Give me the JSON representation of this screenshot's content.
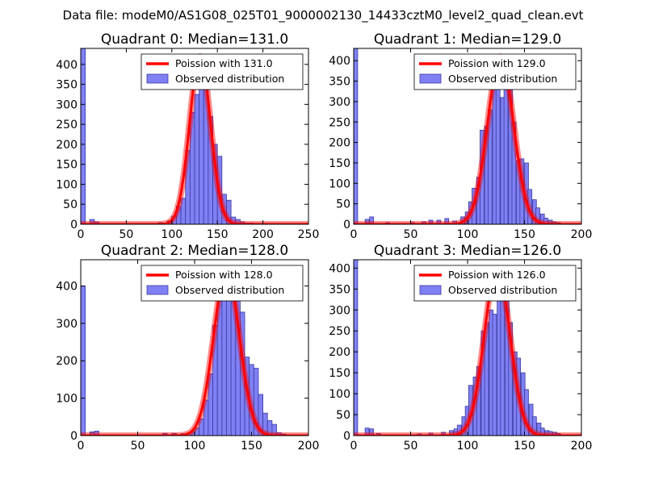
{
  "figure": {
    "suptitle": "Data file: modeM0/AS1G08_025T01_9000002130_14433cztM0_level2_quad_clean.evt",
    "colors": {
      "bar_fill": "#8080f5",
      "bar_edge": "#3a3aa0",
      "fit_line": "#ff0000",
      "axis": "#000000",
      "background": "#ffffff"
    }
  },
  "chart_data": [
    {
      "type": "bar",
      "title": "Quadrant 0: Median=131.0",
      "xlim": [
        0,
        250
      ],
      "ylim": [
        0,
        440
      ],
      "xticks": [
        0,
        50,
        100,
        150,
        200,
        250
      ],
      "yticks": [
        0,
        50,
        100,
        150,
        200,
        250,
        300,
        350,
        400
      ],
      "legend_location": "top-right",
      "series": [
        {
          "name": "Observed distribution",
          "kind": "histogram",
          "bin_width": 5,
          "bins": [
            [
              0,
              440
            ],
            [
              10,
              12
            ],
            [
              15,
              6
            ],
            [
              85,
              4
            ],
            [
              95,
              8
            ],
            [
              100,
              20
            ],
            [
              105,
              45
            ],
            [
              110,
              65
            ],
            [
              115,
              185
            ],
            [
              120,
              280
            ],
            [
              125,
              325
            ],
            [
              130,
              360
            ],
            [
              135,
              375
            ],
            [
              140,
              270
            ],
            [
              145,
              200
            ],
            [
              150,
              170
            ],
            [
              155,
              75
            ],
            [
              160,
              60
            ],
            [
              165,
              18
            ],
            [
              170,
              12
            ],
            [
              175,
              6
            ],
            [
              180,
              3
            ],
            [
              185,
              3
            ],
            [
              190,
              2
            ],
            [
              195,
              1
            ]
          ]
        },
        {
          "name": "Poission with 131.0",
          "kind": "poisson",
          "mean": 131.0,
          "peak": 420
        }
      ]
    },
    {
      "type": "bar",
      "title": "Quadrant 1: Median=129.0",
      "xlim": [
        0,
        200
      ],
      "ylim": [
        0,
        430
      ],
      "xticks": [
        0,
        50,
        100,
        150,
        200
      ],
      "yticks": [
        0,
        50,
        100,
        150,
        200,
        250,
        300,
        350,
        400
      ],
      "legend_location": "top-right",
      "series": [
        {
          "name": "Observed distribution",
          "kind": "histogram",
          "bin_width": 3.5,
          "bins": [
            [
              0,
              430
            ],
            [
              10,
              12
            ],
            [
              14,
              18
            ],
            [
              28,
              4
            ],
            [
              50,
              4
            ],
            [
              60,
              6
            ],
            [
              66,
              10
            ],
            [
              73,
              10
            ],
            [
              80,
              14
            ],
            [
              87,
              8
            ],
            [
              94,
              18
            ],
            [
              98,
              30
            ],
            [
              101,
              55
            ],
            [
              104,
              88
            ],
            [
              108,
              115
            ],
            [
              111,
              230
            ],
            [
              115,
              240
            ],
            [
              118,
              280
            ],
            [
              122,
              335
            ],
            [
              125,
              370
            ],
            [
              129,
              310
            ],
            [
              132,
              380
            ],
            [
              136,
              340
            ],
            [
              139,
              250
            ],
            [
              143,
              155
            ],
            [
              146,
              160
            ],
            [
              150,
              150
            ],
            [
              153,
              85
            ],
            [
              157,
              60
            ],
            [
              160,
              40
            ],
            [
              164,
              25
            ],
            [
              167,
              15
            ],
            [
              171,
              10
            ],
            [
              174,
              6
            ],
            [
              178,
              4
            ],
            [
              181,
              2
            ]
          ]
        },
        {
          "name": "Poission with 129.0",
          "kind": "poisson",
          "mean": 129.0,
          "peak": 410
        }
      ]
    },
    {
      "type": "bar",
      "title": "Quadrant 2: Median=128.0",
      "xlim": [
        0,
        200
      ],
      "ylim": [
        0,
        470
      ],
      "xticks": [
        0,
        50,
        100,
        150,
        200
      ],
      "yticks": [
        0,
        100,
        200,
        300,
        400
      ],
      "legend_location": "top-right",
      "series": [
        {
          "name": "Observed distribution",
          "kind": "histogram",
          "bin_width": 4,
          "bins": [
            [
              0,
              400
            ],
            [
              8,
              10
            ],
            [
              12,
              12
            ],
            [
              72,
              6
            ],
            [
              80,
              6
            ],
            [
              88,
              5
            ],
            [
              96,
              10
            ],
            [
              100,
              20
            ],
            [
              104,
              45
            ],
            [
              108,
              95
            ],
            [
              112,
              165
            ],
            [
              116,
              295
            ],
            [
              120,
              375
            ],
            [
              124,
              400
            ],
            [
              128,
              430
            ],
            [
              132,
              445
            ],
            [
              136,
              380
            ],
            [
              140,
              330
            ],
            [
              144,
              210
            ],
            [
              148,
              190
            ],
            [
              152,
              180
            ],
            [
              156,
              110
            ],
            [
              160,
              60
            ],
            [
              164,
              40
            ],
            [
              168,
              30
            ],
            [
              172,
              8
            ],
            [
              176,
              4
            ]
          ]
        },
        {
          "name": "Poission with 128.0",
          "kind": "poisson",
          "mean": 128.0,
          "peak": 440
        }
      ]
    },
    {
      "type": "bar",
      "title": "Quadrant 3: Median=126.0",
      "xlim": [
        0,
        200
      ],
      "ylim": [
        0,
        420
      ],
      "xticks": [
        0,
        50,
        100,
        150,
        200
      ],
      "yticks": [
        0,
        50,
        100,
        150,
        200,
        250,
        300,
        350,
        400
      ],
      "legend_location": "top-right",
      "series": [
        {
          "name": "Observed distribution",
          "kind": "histogram",
          "bin_width": 3.5,
          "bins": [
            [
              0,
              420
            ],
            [
              10,
              18
            ],
            [
              14,
              16
            ],
            [
              20,
              5
            ],
            [
              56,
              4
            ],
            [
              66,
              6
            ],
            [
              77,
              8
            ],
            [
              84,
              12
            ],
            [
              88,
              16
            ],
            [
              91,
              25
            ],
            [
              95,
              45
            ],
            [
              98,
              70
            ],
            [
              101,
              120
            ],
            [
              105,
              140
            ],
            [
              108,
              165
            ],
            [
              112,
              250
            ],
            [
              115,
              270
            ],
            [
              119,
              300
            ],
            [
              122,
              290
            ],
            [
              126,
              360
            ],
            [
              129,
              325
            ],
            [
              133,
              360
            ],
            [
              136,
              270
            ],
            [
              140,
              200
            ],
            [
              143,
              185
            ],
            [
              147,
              150
            ],
            [
              150,
              110
            ],
            [
              154,
              75
            ],
            [
              157,
              45
            ],
            [
              161,
              30
            ],
            [
              164,
              18
            ],
            [
              168,
              12
            ],
            [
              171,
              10
            ],
            [
              175,
              8
            ],
            [
              178,
              5
            ]
          ]
        },
        {
          "name": "Poission with 126.0",
          "kind": "poisson",
          "mean": 126.0,
          "peak": 400
        }
      ]
    }
  ]
}
